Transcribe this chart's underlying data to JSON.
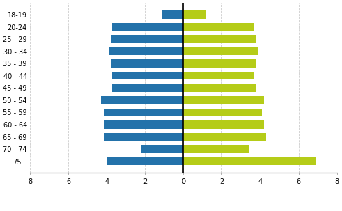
{
  "age_groups": [
    "18-19",
    "20-24",
    "25 - 29",
    "30 - 34",
    "35 - 39",
    "40 - 44",
    "45 - 49",
    "50 - 54",
    "55 - 59",
    "60 - 64",
    "65 - 69",
    "70 - 74",
    "75+"
  ],
  "men_values": [
    1.1,
    3.7,
    3.8,
    3.9,
    3.8,
    3.7,
    3.7,
    4.3,
    4.1,
    4.1,
    4.1,
    2.2,
    4.0
  ],
  "women_values": [
    1.2,
    3.7,
    3.8,
    3.9,
    3.8,
    3.7,
    3.8,
    4.2,
    4.1,
    4.2,
    4.3,
    3.4,
    6.9
  ],
  "men_color": "#2372aa",
  "women_color": "#b5cc18",
  "xlim": [
    -8,
    8
  ],
  "xticks": [
    -8,
    -6,
    -4,
    -2,
    0,
    2,
    4,
    6,
    8
  ],
  "xticklabels": [
    "8",
    "6",
    "4",
    "2",
    "0",
    "2",
    "4",
    "6",
    "8"
  ],
  "bar_height": 0.65,
  "grid_color": "#cccccc",
  "spine_color": "#000000",
  "background_color": "#ffffff",
  "tick_fontsize": 7,
  "legend_fontsize": 7
}
